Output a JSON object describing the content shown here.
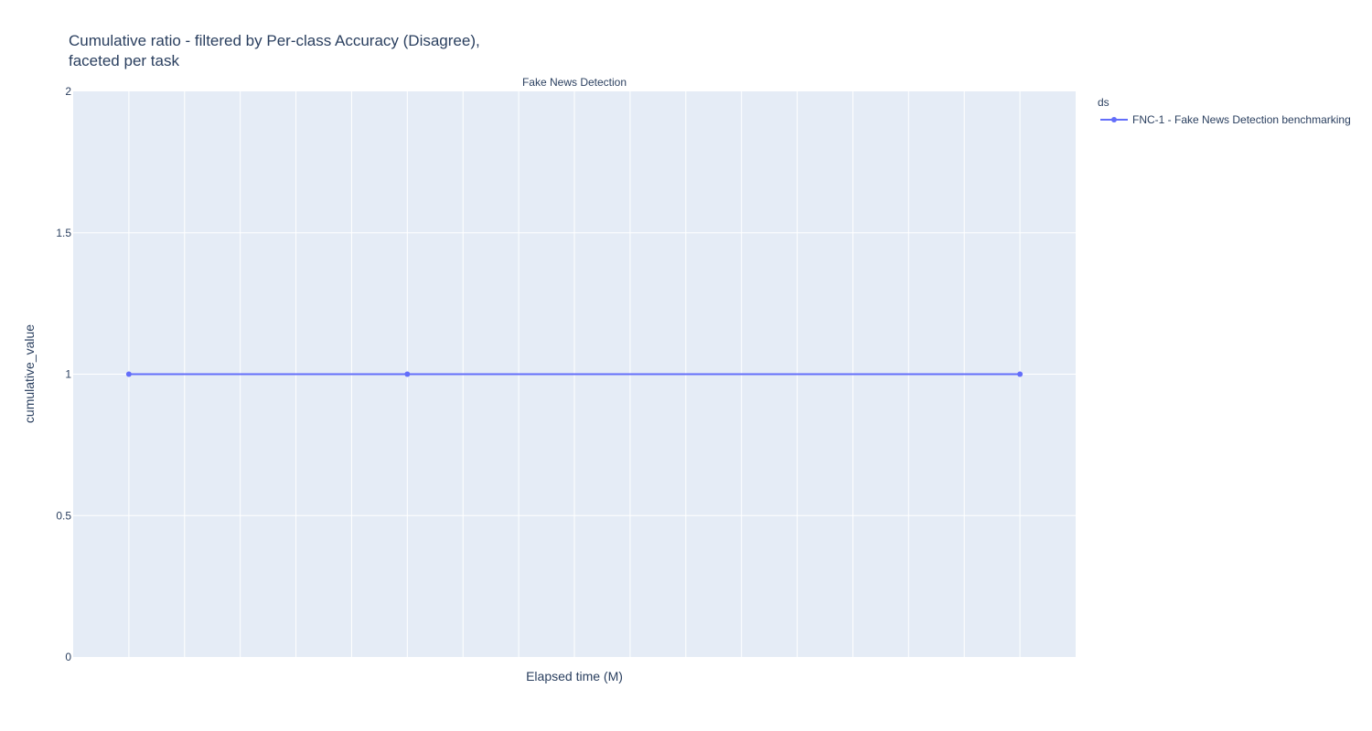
{
  "chart_data": {
    "type": "line",
    "title_line1": "Cumulative ratio - filtered by Per-class Accuracy (Disagree),",
    "title_line2": "faceted per task",
    "subplot_title": "Fake News Detection",
    "xlabel": "Elapsed time (M)",
    "ylabel": "cumulative_value",
    "ylim": [
      0,
      2
    ],
    "yticks": [
      {
        "value": 0,
        "label": "0"
      },
      {
        "value": 0.5,
        "label": "0.5"
      },
      {
        "value": 1,
        "label": "1"
      },
      {
        "value": 1.5,
        "label": "1.5"
      },
      {
        "value": 2,
        "label": "2"
      }
    ],
    "xlim": [
      -1,
      17
    ],
    "x_gridlines": [
      0,
      1,
      2,
      3,
      4,
      5,
      6,
      7,
      8,
      9,
      10,
      11,
      12,
      13,
      14,
      15,
      16
    ],
    "legend_title": "ds",
    "legend_position": "top-right",
    "grid": true,
    "series": [
      {
        "name": "FNC-1 - Fake News Detection benchmarking",
        "color": "#636efa",
        "x": [
          0,
          5,
          16
        ],
        "y": [
          1,
          1,
          1
        ]
      }
    ],
    "colors": {
      "plot_bg": "#e5ecf6",
      "grid": "#ffffff",
      "text": "#2a3f5f"
    }
  }
}
